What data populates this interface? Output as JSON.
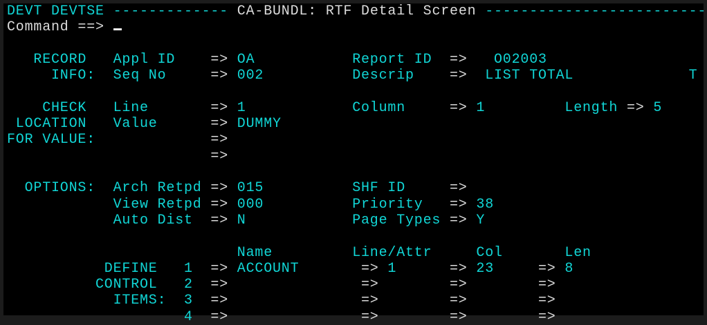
{
  "header": {
    "system": "DEVT DEVTSE",
    "dashes_left": "-------------",
    "title": "CA-BUNDL: RTF Detail Screen",
    "dashes_right": "-------------------------"
  },
  "command": {
    "label": "Command ==>",
    "value": ""
  },
  "arrow": "=>",
  "record": {
    "label1": "RECORD",
    "label2": "INFO:",
    "appl_id_label": "Appl ID",
    "appl_id": "OA",
    "seq_no_label": "Seq No",
    "seq_no": "002",
    "report_id_label": "Report ID",
    "report_id": "O02003",
    "descrip_label": "Descrip",
    "descrip": "LIST TOTAL",
    "descrip_tail": "T"
  },
  "check": {
    "label1": "CHECK",
    "label2": "LOCATION",
    "label3": "FOR VALUE:",
    "line_label": "Line",
    "line": "1",
    "column_label": "Column",
    "column": "1",
    "length_label": "Length",
    "length": "5",
    "value_label": "Value",
    "value": "DUMMY"
  },
  "options": {
    "label": "OPTIONS:",
    "arch_retpd_label": "Arch Retpd",
    "arch_retpd": "015",
    "view_retpd_label": "View Retpd",
    "view_retpd": "000",
    "auto_dist_label": "Auto Dist",
    "auto_dist": "N",
    "shf_id_label": "SHF ID",
    "shf_id": "",
    "priority_label": "Priority",
    "priority": "38",
    "page_types_label": "Page Types",
    "page_types": "Y"
  },
  "control": {
    "label1": "DEFINE",
    "label2": "CONTROL",
    "label3": "ITEMS:",
    "headers": {
      "name": "Name",
      "line_attr": "Line/Attr",
      "col": "Col",
      "len": "Len"
    },
    "items": [
      {
        "num": "1",
        "name": "ACCOUNT",
        "line_attr": "1",
        "col": "23",
        "len": "8"
      },
      {
        "num": "2",
        "name": "",
        "line_attr": "",
        "col": "",
        "len": ""
      },
      {
        "num": "3",
        "name": "",
        "line_attr": "",
        "col": "",
        "len": ""
      },
      {
        "num": "4",
        "name": "",
        "line_attr": "",
        "col": "",
        "len": ""
      }
    ]
  }
}
